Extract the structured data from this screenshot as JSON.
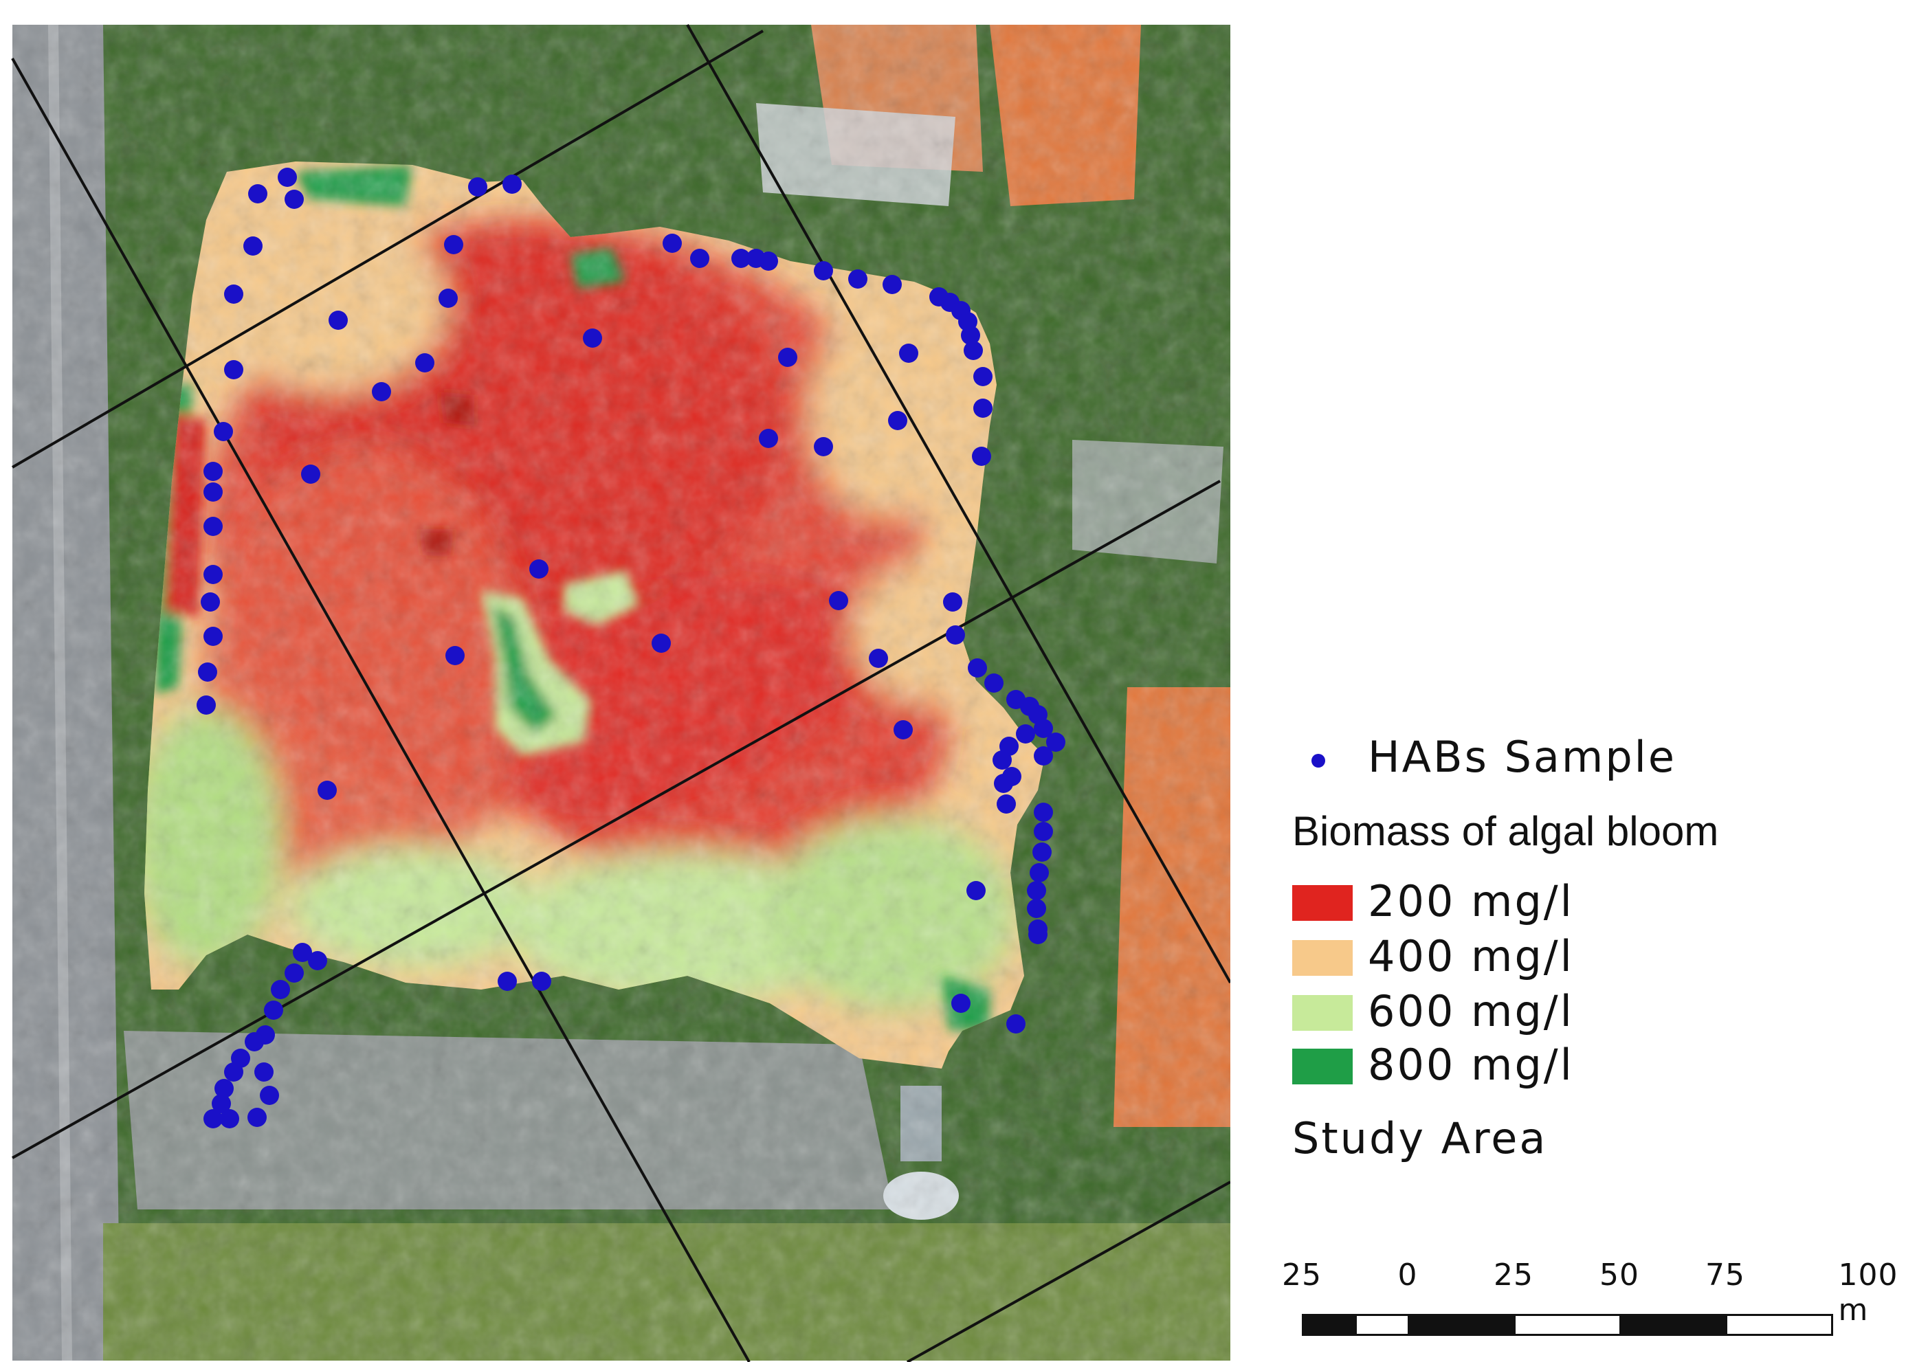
{
  "legend": {
    "sample_label": "HABs Sample",
    "sample_color": "#1a10c8",
    "title": "Biomass of algal bloom",
    "classes": [
      {
        "label": "200 mg/l",
        "color": "#e0241f"
      },
      {
        "label": "400 mg/l",
        "color": "#f7c98a"
      },
      {
        "label": "600 mg/l",
        "color": "#c7ea9a"
      },
      {
        "label": "800 mg/l",
        "color": "#1f9e47"
      }
    ],
    "study_area_label": "Study Area"
  },
  "scale_bar": {
    "labels": [
      "25",
      "0",
      "25",
      "50",
      "75",
      "100 m"
    ],
    "segment_colors": [
      "#111111",
      "#ffffff",
      "#111111",
      "#ffffff",
      "#111111",
      "#ffffff"
    ]
  },
  "colors": {
    "vegetation": "#3f6b2c",
    "road": "#8c9196",
    "roof": "#e2763a",
    "study_grid_line": "#111111"
  }
}
